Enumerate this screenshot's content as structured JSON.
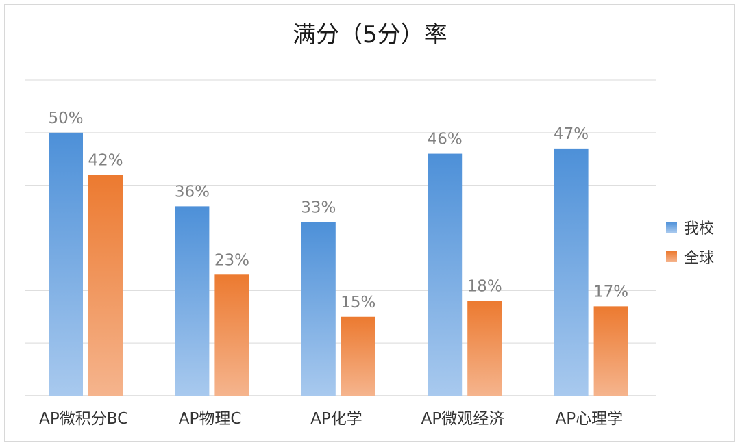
{
  "chart_data": {
    "type": "bar",
    "title": "满分（5分）率",
    "categories": [
      "AP微积分BC",
      "AP物理C",
      "AP化学",
      "AP微观经济",
      "AP心理学"
    ],
    "series": [
      {
        "name": "我校",
        "values": [
          50,
          36,
          33,
          46,
          47
        ],
        "labels": [
          "50%",
          "36%",
          "33%",
          "46%",
          "47%"
        ]
      },
      {
        "name": "全球",
        "values": [
          42,
          23,
          15,
          18,
          17
        ],
        "labels": [
          "42%",
          "23%",
          "15%",
          "18%",
          "17%"
        ]
      }
    ],
    "ylim": [
      0,
      60
    ],
    "gridlines": true,
    "y_tick_labels_visible": false,
    "legend_position": "right",
    "colors": {
      "我校": {
        "top": "#4d90d8",
        "bottom": "#a8c9ee"
      },
      "全球": {
        "top": "#ec7a30",
        "bottom": "#f5b48d"
      },
      "grid": "#d9d9d9",
      "label": "#7f7f7f",
      "text": "#333333"
    }
  }
}
